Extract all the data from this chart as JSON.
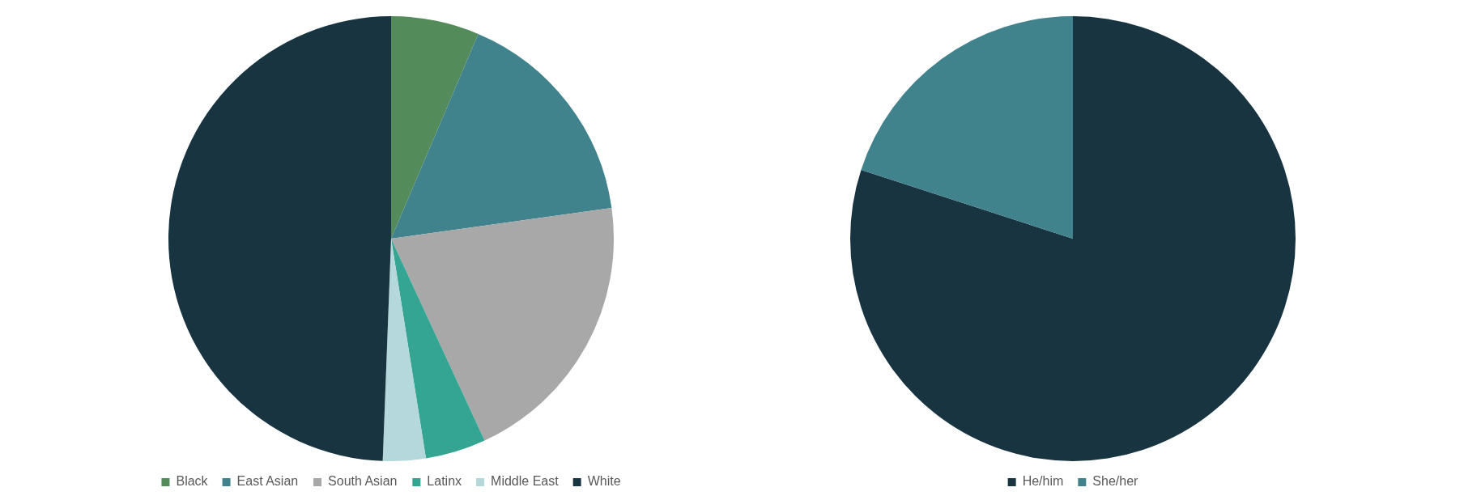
{
  "chart_data": [
    {
      "type": "pie",
      "categories": [
        "Black",
        "East Asian",
        "South Asian",
        "Latinx",
        "Middle East",
        "White"
      ],
      "values": [
        6.4,
        16.4,
        20.3,
        4.4,
        3.1,
        49.4
      ],
      "colors": [
        "#548b5a",
        "#41838c",
        "#a8a8a8",
        "#35a593",
        "#b5d8dc",
        "#183440"
      ],
      "legend": "bottom"
    },
    {
      "type": "pie",
      "categories": [
        "He/him",
        "She/her"
      ],
      "values": [
        80,
        20
      ],
      "colors": [
        "#183440",
        "#41838c"
      ],
      "legend": "bottom"
    }
  ]
}
